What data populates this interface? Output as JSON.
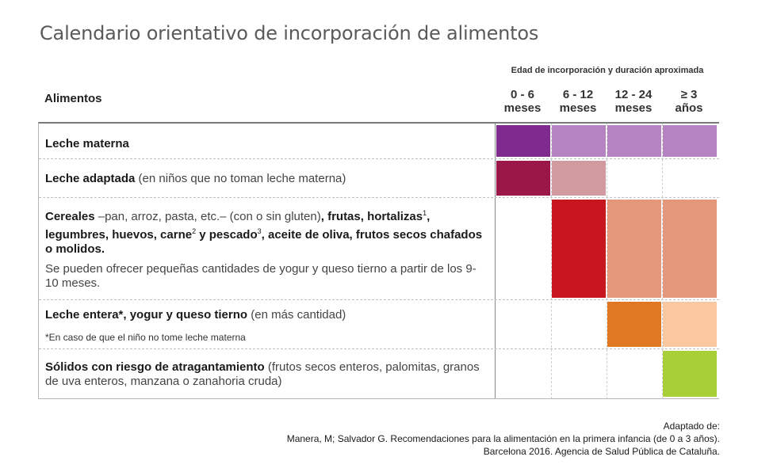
{
  "title": "Calendario orientativo de incorporación de alimentos",
  "span_header": "Edad de incorporación y duración aproximada",
  "food_header": "Alimentos",
  "age_columns": [
    {
      "line1": "0 - 6",
      "line2": "meses"
    },
    {
      "line1": "6 - 12",
      "line2": "meses"
    },
    {
      "line1": "12 - 24",
      "line2": "meses"
    },
    {
      "line1": "≥ 3",
      "line2": "años"
    }
  ],
  "rows": [
    {
      "bold": "Leche materna",
      "rest": "",
      "colors": [
        "#7e2a8e",
        "#b484c2",
        "#b484c2",
        "#b484c2"
      ]
    },
    {
      "bold": "Leche adaptada",
      "rest": " (en niños que no toman leche materna)",
      "colors": [
        "#9a1748",
        "#d09aa0",
        "",
        ""
      ]
    },
    {
      "p1_a": "Cereales",
      "p1_b": " –pan, arroz, pasta, etc.– (con o sin gluten)",
      "p1_c": ", frutas, hortalizas",
      "sup1": "1",
      "p1_d": ", legumbres, huevos, carne",
      "sup2": "2",
      "p1_e": " y pescado",
      "sup3": "3",
      "p1_f": ", aceite de oliva, frutos secos chafados o molidos.",
      "p2": "Se pueden ofrecer pequeñas cantidades de yogur y queso tierno a partir de los 9-10 meses.",
      "colors": [
        "",
        "#c8161e",
        "#e5977c",
        "#e5977c"
      ]
    },
    {
      "bold": "Leche entera*, yogur y queso tierno",
      "rest": " (en más cantidad)",
      "note": "*En caso de que el niño no tome leche materna",
      "colors": [
        "",
        "",
        "#e07722",
        "#f9c7a0"
      ]
    },
    {
      "bold": "Sólidos con riesgo de atragantamiento",
      "rest": " (frutos secos enteros, palomitas, granos de uva enteros, manzana o zanahoria cruda)",
      "colors": [
        "",
        "",
        "",
        "#a9cf38"
      ]
    }
  ],
  "credit": {
    "line1": "Adaptado de:",
    "line2": "Manera, M; Salvador G. Recomendaciones para la alimentación en la primera infancia (de 0 a 3 años).",
    "line3": "Barcelona 2016. Agencia de Salud Pública de Cataluña."
  }
}
